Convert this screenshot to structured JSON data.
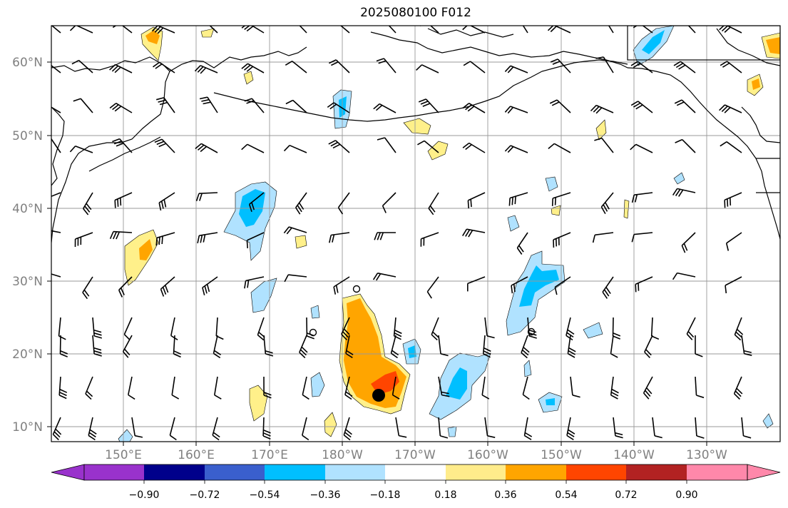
{
  "title": "2025080100 F012",
  "lat_labels": [
    "60°N",
    "50°N",
    "40°N",
    "30°N",
    "20°N",
    "10°N"
  ],
  "lon_labels": [
    "150°E",
    "160°E",
    "170°E",
    "180°W",
    "170°W",
    "160°W",
    "150°W",
    "140°W",
    "130°W"
  ],
  "colorbar": {
    "colors": [
      "#9932cc",
      "#00008b",
      "#3a5fcd",
      "#00bfff",
      "#b0e2ff",
      "#ffffff",
      "#ffec8b",
      "#ffa500",
      "#ff4500",
      "#b22222",
      "#ff88aa"
    ],
    "tick_labels": [
      "−0.90",
      "−0.72",
      "−0.54",
      "−0.36",
      "−0.18",
      "0.18",
      "0.36",
      "0.54",
      "0.72",
      "0.90"
    ]
  },
  "colors": {
    "grid": "#999999",
    "coast": "#000000",
    "light_yellow": "#fff08a",
    "orange": "#ffa500",
    "red_orange": "#ff4500",
    "light_blue": "#b0e2ff",
    "blue": "#00bfff"
  }
}
